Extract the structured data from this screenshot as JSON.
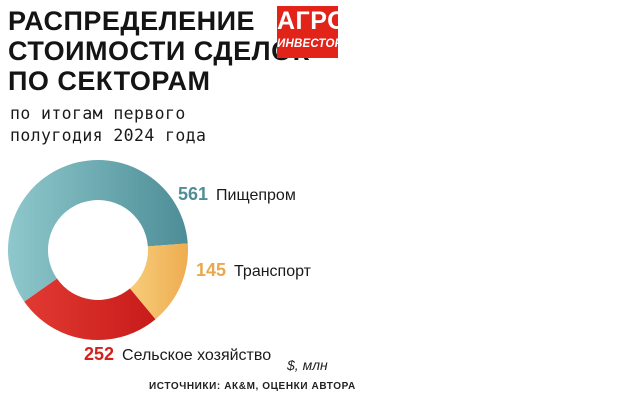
{
  "title_lines": [
    "РАСПРЕДЕЛЕНИЕ",
    "СТОИМОСТИ СДЕЛОК",
    "ПО СЕКТОРАМ"
  ],
  "subtitle_lines": [
    "по итогам первого",
    "полугодия 2024 года"
  ],
  "logo": {
    "line1": "АГРО",
    "line2": "ИНВЕСТОР",
    "color": "#e2231a"
  },
  "unit": "$, млн",
  "source": "ИСТОЧНИКИ: АК&М, ОЦЕНКИ АВТОРА",
  "chart_data": {
    "type": "pie",
    "title": "РАСПРЕДЕЛЕНИЕ СТОИМОСТИ СДЕЛОК ПО СЕКТОРАМ",
    "subtitle": "по итогам первого полугодия 2024 года",
    "unit": "$, млн",
    "categories": [
      "Пищепром",
      "Транспорт",
      "Сельское хозяйство"
    ],
    "values": [
      561,
      145,
      252
    ],
    "value_labels": [
      "561",
      "145",
      "252"
    ],
    "colors": [
      "#5e9ea6",
      "#f0b55e",
      "#d8231f"
    ],
    "legend": "labels beside slices"
  }
}
